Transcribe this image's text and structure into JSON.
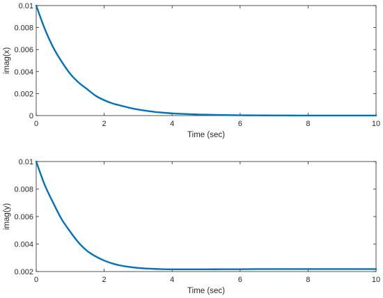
{
  "chart_data": [
    {
      "type": "line",
      "xlabel": "Time (sec)",
      "ylabel": "imag(x)",
      "xlim": [
        0,
        10
      ],
      "ylim": [
        0,
        0.01
      ],
      "xticks": [
        "0",
        "2",
        "4",
        "6",
        "8",
        "10"
      ],
      "yticks": [
        "0",
        "0.002",
        "0.004",
        "0.006",
        "0.008",
        "0.01"
      ],
      "grid": false,
      "series": [
        {
          "color": "#0072BD",
          "x": [
            0,
            0.25,
            0.5,
            0.75,
            1,
            1.25,
            1.5,
            1.75,
            2,
            2.25,
            2.5,
            2.75,
            3,
            3.25,
            3.5,
            3.75,
            4,
            4.25,
            4.5,
            4.75,
            5,
            5.5,
            6,
            6.5,
            7,
            7.5,
            8,
            8.5,
            9,
            9.5,
            10
          ],
          "y": [
            0.01,
            0.0079,
            0.0062,
            0.0049,
            0.0038,
            0.003,
            0.0024,
            0.0018,
            0.0014,
            0.0011,
            0.0009,
            0.0007,
            0.00055,
            0.00043,
            0.00033,
            0.00026,
            0.0002,
            0.00016,
            0.00013,
            0.0001,
            8e-05,
            5e-05,
            3e-05,
            2e-05,
            1.2e-05,
            8e-06,
            5e-06,
            3e-06,
            2e-06,
            1e-06,
            1e-06
          ]
        }
      ]
    },
    {
      "type": "line",
      "xlabel": "Time (sec)",
      "ylabel": "imag(y)",
      "xlim": [
        0,
        10
      ],
      "ylim": [
        0.002,
        0.01
      ],
      "xticks": [
        "0",
        "2",
        "4",
        "6",
        "8",
        "10"
      ],
      "yticks": [
        "0.002",
        "0.004",
        "0.006",
        "0.008",
        "0.01"
      ],
      "grid": false,
      "series": [
        {
          "color": "#0072BD",
          "x": [
            0,
            0.25,
            0.5,
            0.75,
            1,
            1.25,
            1.5,
            1.75,
            2,
            2.25,
            2.5,
            2.75,
            3,
            3.25,
            3.5,
            3.75,
            4,
            4.5,
            5,
            5.5,
            6,
            6.5,
            7,
            7.5,
            8,
            8.5,
            9,
            9.5,
            10
          ],
          "y": [
            0.01,
            0.0083,
            0.007,
            0.0058,
            0.0049,
            0.0041,
            0.0035,
            0.0031,
            0.0028,
            0.00258,
            0.00243,
            0.00233,
            0.00226,
            0.00222,
            0.00219,
            0.00217,
            0.00216,
            0.00216,
            0.00216,
            0.00217,
            0.00217,
            0.00218,
            0.00218,
            0.00218,
            0.00218,
            0.00218,
            0.00218,
            0.00218,
            0.00218
          ]
        }
      ]
    }
  ]
}
